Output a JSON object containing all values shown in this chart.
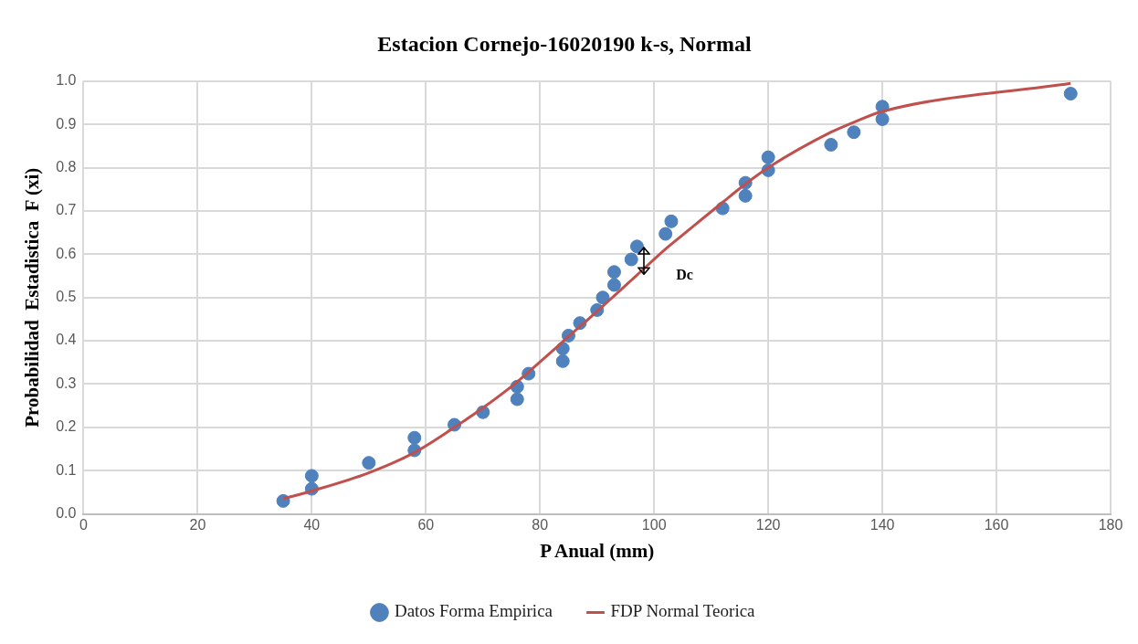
{
  "chart_data": {
    "type": "scatter",
    "title": "Estacion Cornejo-16020190 k-s, Normal",
    "xlabel": "P Anual (mm)",
    "ylabel": "Probabilidad  Estadistica  F (xi)",
    "xlim": [
      0,
      180
    ],
    "xticks": [
      0,
      20,
      40,
      60,
      80,
      100,
      120,
      140,
      160,
      180
    ],
    "ylim": [
      0,
      1
    ],
    "yticks": [
      {
        "value": 0,
        "label": "0.0"
      },
      {
        "value": 0.1,
        "label": "0.1"
      },
      {
        "value": 0.2,
        "label": "0.2"
      },
      {
        "value": 0.3,
        "label": "0.3"
      },
      {
        "value": 0.4,
        "label": "0.4"
      },
      {
        "value": 0.5,
        "label": "0.5"
      },
      {
        "value": 0.6,
        "label": "0.6"
      },
      {
        "value": 0.7,
        "label": "0.7"
      },
      {
        "value": 0.8,
        "label": "0.8"
      },
      {
        "value": 0.9,
        "label": "0.9"
      },
      {
        "value": 1,
        "label": "1.0"
      }
    ],
    "grid": true,
    "legend": "bottom",
    "marker": "circle",
    "annotations": [
      "Dc"
    ],
    "series": [
      {
        "name": "Datos Forma Empirica",
        "type": "scatter",
        "color": "#4f81bd",
        "x": [
          35,
          40,
          40,
          50,
          58,
          58,
          65,
          70,
          76,
          76,
          78,
          84,
          84,
          85,
          87,
          90,
          91,
          93,
          93,
          96,
          97,
          102,
          103,
          112,
          116,
          116,
          120,
          120,
          131,
          135,
          140,
          140,
          173
        ],
        "values": [
          0.03,
          0.088,
          0.058,
          0.118,
          0.176,
          0.147,
          0.206,
          0.235,
          0.294,
          0.265,
          0.324,
          0.382,
          0.353,
          0.412,
          0.441,
          0.471,
          0.5,
          0.559,
          0.529,
          0.588,
          0.618,
          0.647,
          0.676,
          0.706,
          0.765,
          0.735,
          0.824,
          0.794,
          0.853,
          0.882,
          0.941,
          0.912,
          0.971
        ]
      },
      {
        "name": "FDP Normal Teorica",
        "type": "line",
        "color": "#c0504d",
        "marker": "none",
        "line_style": "solid",
        "x": [
          35,
          40,
          50,
          58,
          65,
          70,
          76,
          78,
          84,
          85,
          87,
          90,
          91,
          93,
          96,
          97,
          102,
          103,
          112,
          116,
          120,
          131,
          135,
          140,
          173
        ],
        "values": [
          0.035,
          0.053,
          0.095,
          0.142,
          0.2,
          0.245,
          0.305,
          0.328,
          0.398,
          0.41,
          0.433,
          0.468,
          0.48,
          0.504,
          0.54,
          0.552,
          0.612,
          0.623,
          0.72,
          0.762,
          0.8,
          0.882,
          0.905,
          0.93,
          0.995
        ]
      }
    ]
  }
}
